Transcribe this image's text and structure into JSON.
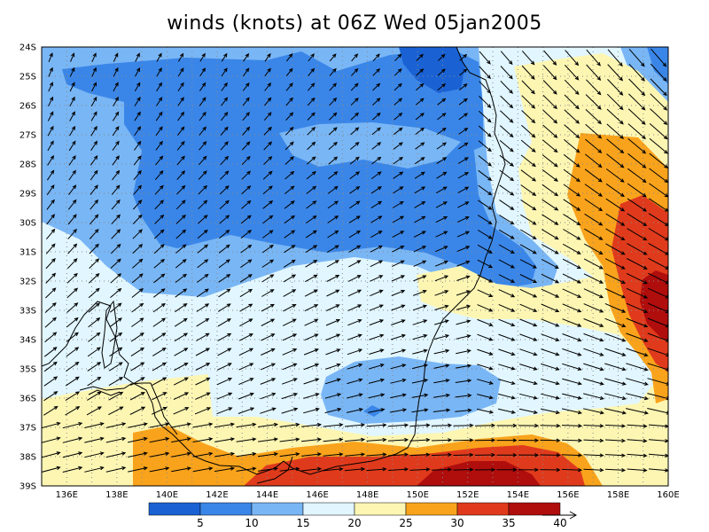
{
  "title": "winds (knots) at 06Z Wed 05jan2005",
  "lat_labels": [
    "24S",
    "25S",
    "26S",
    "27S",
    "28S",
    "29S",
    "30S",
    "31S",
    "32S",
    "33S",
    "34S",
    "35S",
    "36S",
    "37S",
    "38S",
    "39S"
  ],
  "lon_labels": [
    "136E",
    "138E",
    "140E",
    "142E",
    "144E",
    "146E",
    "148E",
    "150E",
    "152E",
    "154E",
    "156E",
    "158E",
    "160E"
  ],
  "colorbar": {
    "labels": [
      "5",
      "10",
      "15",
      "20",
      "25",
      "30",
      "35",
      "40"
    ],
    "colors": [
      "#1a62d4",
      "#3a86e8",
      "#79b6f5",
      "#e1f6ff",
      "#fdf6b3",
      "#f9a31c",
      "#e03a1c",
      "#b00d0d"
    ]
  },
  "shade_colors": {
    "c0_5": "#1a62d4",
    "c5_10": "#3a86e8",
    "c10_15": "#79b6f5",
    "c15_20": "#e1f6ff",
    "c20_25": "#fdf6b3",
    "c25_30": "#f9a31c",
    "c30_35": "#e03a1c",
    "c35_40": "#b00d0d"
  }
}
